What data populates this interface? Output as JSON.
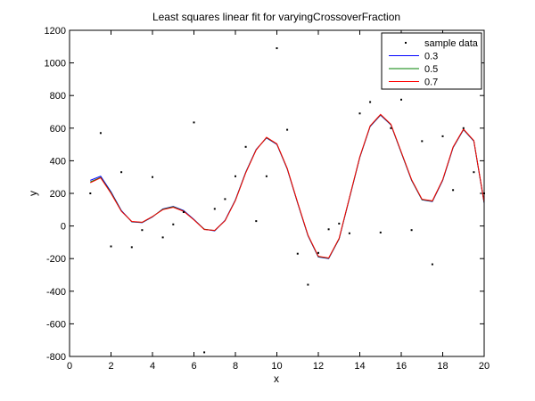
{
  "chart_data": {
    "type": "line",
    "title": "Least squares linear fit for varyingCrossoverFraction",
    "xlabel": "x",
    "ylabel": "y",
    "xlim": [
      0,
      20
    ],
    "ylim": [
      -800,
      1200
    ],
    "xticks": [
      0,
      2,
      4,
      6,
      8,
      10,
      12,
      14,
      16,
      18,
      20
    ],
    "yticks": [
      -800,
      -600,
      -400,
      -200,
      0,
      200,
      400,
      600,
      800,
      1000,
      1200
    ],
    "grid": false,
    "legend_position": "top-right",
    "scatter": {
      "name": "sample data",
      "color": "#000000",
      "points": [
        [
          1.0,
          200
        ],
        [
          1.5,
          570
        ],
        [
          2.0,
          -125
        ],
        [
          2.5,
          330
        ],
        [
          3.0,
          -130
        ],
        [
          3.5,
          -25
        ],
        [
          4.0,
          300
        ],
        [
          4.5,
          -70
        ],
        [
          5.0,
          10
        ],
        [
          5.5,
          85
        ],
        [
          6.0,
          635
        ],
        [
          6.5,
          -775
        ],
        [
          7.0,
          105
        ],
        [
          7.5,
          165
        ],
        [
          8.0,
          305
        ],
        [
          8.5,
          485
        ],
        [
          9.0,
          30
        ],
        [
          9.5,
          305
        ],
        [
          10.0,
          1090
        ],
        [
          10.5,
          590
        ],
        [
          11.0,
          -170
        ],
        [
          11.5,
          -360
        ],
        [
          12.0,
          -165
        ],
        [
          12.5,
          -20
        ],
        [
          13.0,
          15
        ],
        [
          13.5,
          -45
        ],
        [
          14.0,
          690
        ],
        [
          14.5,
          760
        ],
        [
          15.0,
          -40
        ],
        [
          15.5,
          600
        ],
        [
          16.0,
          775
        ],
        [
          16.5,
          -25
        ],
        [
          17.0,
          520
        ],
        [
          17.5,
          -235
        ],
        [
          18.0,
          550
        ],
        [
          18.5,
          220
        ],
        [
          19.0,
          600
        ],
        [
          19.5,
          330
        ],
        [
          20.0,
          200
        ]
      ]
    },
    "x": [
      1,
      1.5,
      2,
      2.5,
      3,
      3.5,
      4,
      4.5,
      5,
      5.5,
      6,
      6.5,
      7,
      7.5,
      8,
      8.5,
      9,
      9.5,
      10,
      10.5,
      11,
      11.5,
      12,
      12.5,
      13,
      13.5,
      14,
      14.5,
      15,
      15.5,
      16,
      16.5,
      17,
      17.5,
      18,
      18.5,
      19,
      19.5,
      20
    ],
    "series": [
      {
        "name": "0.3",
        "color": "#0000ff",
        "values": [
          280,
          305,
          210,
          95,
          25,
          20,
          55,
          105,
          120,
          95,
          40,
          -20,
          -30,
          35,
          160,
          330,
          470,
          540,
          500,
          350,
          140,
          -60,
          -190,
          -200,
          -80,
          170,
          420,
          610,
          680,
          620,
          450,
          280,
          160,
          150,
          280,
          480,
          590,
          520,
          140
        ]
      },
      {
        "name": "0.5",
        "color": "#008000",
        "values": [
          270,
          298,
          205,
          92,
          26,
          22,
          57,
          103,
          118,
          92,
          38,
          -20,
          -28,
          33,
          158,
          328,
          468,
          542,
          502,
          352,
          142,
          -58,
          -188,
          -198,
          -78,
          172,
          422,
          612,
          682,
          622,
          452,
          282,
          162,
          152,
          282,
          482,
          592,
          522,
          142
        ]
      },
      {
        "name": "0.7",
        "color": "#ff0000",
        "values": [
          265,
          295,
          200,
          90,
          28,
          23,
          58,
          100,
          115,
          90,
          37,
          -22,
          -27,
          32,
          156,
          326,
          466,
          544,
          504,
          354,
          144,
          -56,
          -186,
          -196,
          -76,
          174,
          424,
          614,
          684,
          624,
          454,
          284,
          164,
          154,
          284,
          484,
          594,
          524,
          144
        ]
      }
    ]
  }
}
